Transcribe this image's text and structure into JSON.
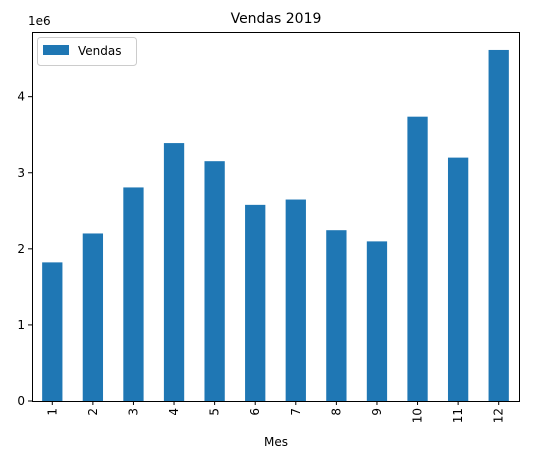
{
  "chart_data": {
    "type": "bar",
    "title": "Vendas 2019",
    "xlabel": "Mes",
    "ylabel": "",
    "y_offset_label": "1e6",
    "categories": [
      "1",
      "2",
      "3",
      "4",
      "5",
      "6",
      "7",
      "8",
      "9",
      "10",
      "11",
      "12"
    ],
    "series": [
      {
        "name": "Vendas",
        "color": "#1f77b4",
        "values": [
          1822000,
          2202000,
          2807000,
          3390000,
          3152000,
          2578000,
          2648000,
          2245000,
          2098000,
          3737000,
          3199000,
          4614000
        ]
      }
    ],
    "ylim": [
      0,
      4850000
    ],
    "y_ticks": [
      0,
      1000000,
      2000000,
      3000000,
      4000000
    ],
    "y_tick_labels": [
      "0",
      "1",
      "2",
      "3",
      "4"
    ],
    "legend_location": "upper-left",
    "grid": false
  }
}
